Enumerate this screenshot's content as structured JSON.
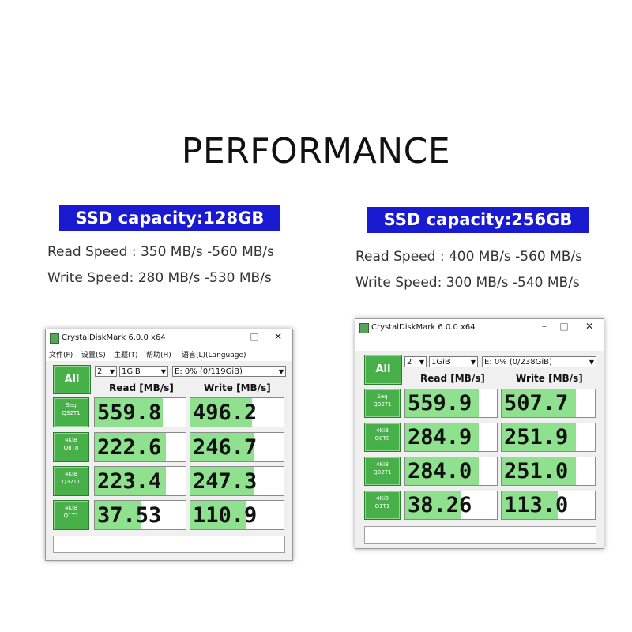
{
  "heading": "PERFORMANCE",
  "panels": [
    {
      "capacity_label": "SSD capacity:128GB",
      "read_speed": "Read Speed : 350 MB/s -560 MB/s",
      "write_speed": "Write Speed: 280 MB/s -530 MB/s",
      "window_title": "CrystalDiskMark 6.0.0 x64",
      "menu": [
        "文件(F)",
        "设置(S)",
        "主题(T)",
        "帮助(H)",
        "语言(L)(Language)"
      ],
      "all_button": "All",
      "count_select": "2",
      "size_select": "1GiB",
      "drive_select": "E: 0% (0/119GiB)",
      "read_header": "Read [MB/s]",
      "write_header": "Write [MB/s]",
      "rows": [
        {
          "l1": "Seq",
          "l2": "Q32T1",
          "read": "559.8",
          "write": "496.2",
          "read_fill": 0.75,
          "write_fill": 0.66
        },
        {
          "l1": "4KiB",
          "l2": "Q8T8",
          "read": "222.6",
          "write": "246.7",
          "read_fill": 0.78,
          "write_fill": 0.68
        },
        {
          "l1": "4KiB",
          "l2": "Q32T1",
          "read": "223.4",
          "write": "247.3",
          "read_fill": 0.78,
          "write_fill": 0.68
        },
        {
          "l1": "4KiB",
          "l2": "Q1T1",
          "read": "37.53",
          "write": "110.9",
          "read_fill": 0.5,
          "write_fill": 0.6
        }
      ]
    },
    {
      "capacity_label": "SSD capacity:256GB",
      "read_speed": "Read Speed : 400 MB/s -560 MB/s",
      "write_speed": "Write Speed: 300 MB/s -540 MB/s",
      "window_title": "CrystalDiskMark 6.0.0 x64",
      "menu": [],
      "all_button": "All",
      "count_select": "2",
      "size_select": "1GiB",
      "drive_select": "E: 0% (0/238GiB)",
      "read_header": "Read [MB/s]",
      "write_header": "Write [MB/s]",
      "rows": [
        {
          "l1": "Seq",
          "l2": "Q32T1",
          "read": "559.9",
          "write": "507.7",
          "read_fill": 0.8,
          "write_fill": 0.8
        },
        {
          "l1": "4KiB",
          "l2": "Q8T8",
          "read": "284.9",
          "write": "251.9",
          "read_fill": 0.8,
          "write_fill": 0.8
        },
        {
          "l1": "4KiB",
          "l2": "Q32T1",
          "read": "284.0",
          "write": "251.0",
          "read_fill": 0.8,
          "write_fill": 0.8
        },
        {
          "l1": "4KiB",
          "l2": "Q1T1",
          "read": "38.26",
          "write": "113.0",
          "read_fill": 0.6,
          "write_fill": 0.6
        }
      ]
    }
  ],
  "colors": {
    "capacity_bg": "#1a1ad0",
    "bar_fill": "#8fe08f",
    "button_green": "#48b048"
  }
}
